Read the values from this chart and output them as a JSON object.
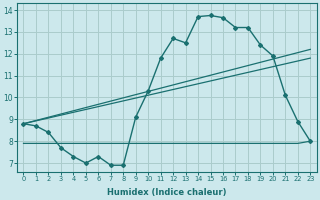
{
  "xlabel": "Humidex (Indice chaleur)",
  "ylabel": "",
  "bg_color": "#cce8ec",
  "grid_color": "#aacccc",
  "line_color": "#1a7070",
  "x_min": -0.5,
  "x_max": 23.5,
  "y_min": 6.6,
  "y_max": 14.3,
  "yticks": [
    7,
    8,
    9,
    10,
    11,
    12,
    13,
    14
  ],
  "xticks": [
    0,
    1,
    2,
    3,
    4,
    5,
    6,
    7,
    8,
    9,
    10,
    11,
    12,
    13,
    14,
    15,
    16,
    17,
    18,
    19,
    20,
    21,
    22,
    23
  ],
  "main_x": [
    0,
    1,
    2,
    3,
    4,
    5,
    6,
    7,
    8,
    9,
    10,
    11,
    12,
    13,
    14,
    15,
    16,
    17,
    18,
    19,
    20,
    21,
    22,
    23
  ],
  "main_y": [
    8.8,
    8.7,
    8.4,
    7.7,
    7.3,
    7.0,
    7.3,
    6.9,
    6.9,
    9.1,
    10.3,
    11.8,
    12.7,
    12.5,
    13.7,
    13.75,
    13.65,
    13.2,
    13.2,
    12.4,
    11.9,
    10.1,
    8.9,
    8.0
  ],
  "line2_x": [
    0,
    23
  ],
  "line2_y": [
    8.8,
    12.2
  ],
  "line3_x": [
    0,
    23
  ],
  "line3_y": [
    8.8,
    11.8
  ],
  "flat_x": [
    0,
    9,
    10,
    11,
    12,
    13,
    14,
    15,
    16,
    17,
    18,
    19,
    20,
    21,
    22,
    23
  ],
  "flat_y": [
    7.9,
    7.9,
    7.9,
    7.9,
    7.9,
    7.9,
    7.9,
    7.9,
    7.9,
    7.9,
    7.9,
    7.9,
    7.9,
    7.9,
    7.9,
    8.0
  ]
}
